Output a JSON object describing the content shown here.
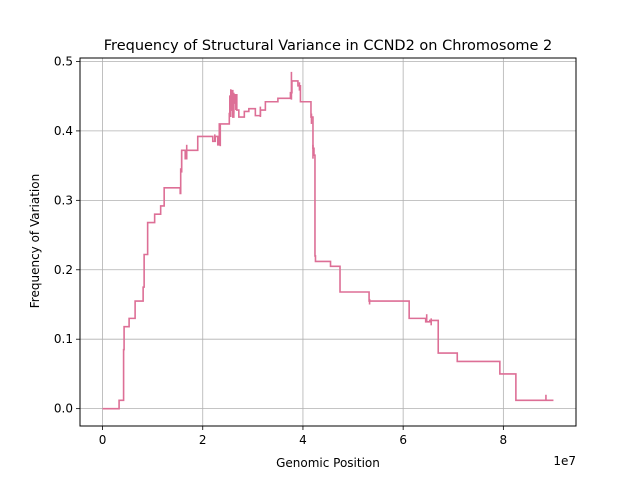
{
  "chart_data": {
    "type": "line",
    "title": "Frequency of Structural Variance in CCND2 on Chromosome 2",
    "xlabel": "Genomic Position",
    "ylabel": "Frequency of Variation",
    "x_offset_text": "1e7",
    "xlim": [
      -4500000.0,
      94500000.0
    ],
    "ylim": [
      -0.025,
      0.505
    ],
    "x_ticks": [
      0,
      20000000.0,
      40000000.0,
      60000000.0,
      80000000.0
    ],
    "x_tick_labels": [
      "0",
      "2",
      "4",
      "6",
      "8"
    ],
    "y_ticks": [
      0.0,
      0.1,
      0.2,
      0.3,
      0.4,
      0.5
    ],
    "y_tick_labels": [
      "0.0",
      "0.1",
      "0.2",
      "0.3",
      "0.4",
      "0.5"
    ],
    "grid": true,
    "line_color": "#dd6f96",
    "series": [
      {
        "step": "post",
        "points": [
          [
            0,
            0.0
          ],
          [
            3200000.0,
            0.0
          ],
          [
            3300000.0,
            0.012
          ],
          [
            4100000.0,
            0.012
          ],
          [
            4200000.0,
            0.085
          ],
          [
            4300000.0,
            0.118
          ],
          [
            5200000.0,
            0.118
          ],
          [
            5300000.0,
            0.13
          ],
          [
            6300000.0,
            0.13
          ],
          [
            6500000.0,
            0.155
          ],
          [
            8000000.0,
            0.155
          ],
          [
            8100000.0,
            0.175
          ],
          [
            8300000.0,
            0.222
          ],
          [
            8900000.0,
            0.222
          ],
          [
            9000000.0,
            0.268
          ],
          [
            10300000.0,
            0.268
          ],
          [
            10400000.0,
            0.28
          ],
          [
            11500000.0,
            0.28
          ],
          [
            11600000.0,
            0.292
          ],
          [
            12200000.0,
            0.292
          ],
          [
            12300000.0,
            0.318
          ],
          [
            15500000.0,
            0.318
          ],
          [
            15500000.0,
            0.31
          ],
          [
            15600000.0,
            0.31
          ],
          [
            15600000.0,
            0.345
          ],
          [
            15800000.0,
            0.345
          ],
          [
            15800000.0,
            0.372
          ],
          [
            16500000.0,
            0.372
          ],
          [
            16500000.0,
            0.36
          ],
          [
            16800000.0,
            0.36
          ],
          [
            16800000.0,
            0.372
          ],
          [
            19000000.0,
            0.372
          ],
          [
            19000000.0,
            0.392
          ],
          [
            22000000.0,
            0.392
          ],
          [
            22000000.0,
            0.385
          ],
          [
            22500000.0,
            0.385
          ],
          [
            22500000.0,
            0.392
          ],
          [
            23000000.0,
            0.392
          ],
          [
            23000000.0,
            0.38
          ],
          [
            23300000.0,
            0.38
          ],
          [
            23300000.0,
            0.41
          ],
          [
            25200000.0,
            0.41
          ],
          [
            25300000.0,
            0.425
          ],
          [
            25400000.0,
            0.45
          ],
          [
            25600000.0,
            0.43
          ],
          [
            25800000.0,
            0.458
          ],
          [
            26000000.0,
            0.42
          ],
          [
            26200000.0,
            0.44
          ],
          [
            26500000.0,
            0.452
          ],
          [
            26800000.0,
            0.43
          ],
          [
            27200000.0,
            0.42
          ],
          [
            28300000.0,
            0.42
          ],
          [
            28300000.0,
            0.428
          ],
          [
            29200000.0,
            0.428
          ],
          [
            29200000.0,
            0.432
          ],
          [
            30500000.0,
            0.432
          ],
          [
            30500000.0,
            0.422
          ],
          [
            31500000.0,
            0.422
          ],
          [
            31500000.0,
            0.43
          ],
          [
            32500000.0,
            0.43
          ],
          [
            32500000.0,
            0.442
          ],
          [
            35000000.0,
            0.442
          ],
          [
            35000000.0,
            0.447
          ],
          [
            37500000.0,
            0.447
          ],
          [
            37500000.0,
            0.455
          ],
          [
            37800000.0,
            0.455
          ],
          [
            37800000.0,
            0.472
          ],
          [
            39000000.0,
            0.472
          ],
          [
            39000000.0,
            0.465
          ],
          [
            39500000.0,
            0.465
          ],
          [
            39500000.0,
            0.442
          ],
          [
            41500000.0,
            0.442
          ],
          [
            41600000.0,
            0.42
          ],
          [
            41900000.0,
            0.42
          ],
          [
            42000000.0,
            0.375
          ],
          [
            42200000.0,
            0.365
          ],
          [
            42400000.0,
            0.22
          ],
          [
            42500000.0,
            0.212
          ],
          [
            45500000.0,
            0.212
          ],
          [
            45500000.0,
            0.205
          ],
          [
            47300000.0,
            0.205
          ],
          [
            47400000.0,
            0.168
          ],
          [
            53200000.0,
            0.168
          ],
          [
            53200000.0,
            0.155
          ],
          [
            61200000.0,
            0.155
          ],
          [
            61200000.0,
            0.13
          ],
          [
            64500000.0,
            0.13
          ],
          [
            64500000.0,
            0.125
          ],
          [
            65300000.0,
            0.125
          ],
          [
            65300000.0,
            0.127
          ],
          [
            67000000.0,
            0.127
          ],
          [
            67000000.0,
            0.08
          ],
          [
            70800000.0,
            0.08
          ],
          [
            70800000.0,
            0.068
          ],
          [
            79000000.0,
            0.068
          ],
          [
            79300000.0,
            0.05
          ],
          [
            82500000.0,
            0.05
          ],
          [
            82500000.0,
            0.012
          ],
          [
            90000000.0,
            0.012
          ]
        ],
        "spikes": [
          [
            15800000.0,
            0.34,
            0.372
          ],
          [
            16800000.0,
            0.36,
            0.38
          ],
          [
            22400000.0,
            0.385,
            0.395
          ],
          [
            23500000.0,
            0.378,
            0.41
          ],
          [
            25600000.0,
            0.42,
            0.46
          ],
          [
            26200000.0,
            0.425,
            0.455
          ],
          [
            26600000.0,
            0.43,
            0.452
          ],
          [
            31500000.0,
            0.42,
            0.435
          ],
          [
            37700000.0,
            0.445,
            0.485
          ],
          [
            39300000.0,
            0.458,
            0.47
          ],
          [
            41700000.0,
            0.41,
            0.425
          ],
          [
            42000000.0,
            0.36,
            0.38
          ],
          [
            53300000.0,
            0.15,
            0.158
          ],
          [
            64700000.0,
            0.125,
            0.136
          ],
          [
            65600000.0,
            0.12,
            0.13
          ],
          [
            88500000.0,
            0.012,
            0.02
          ]
        ]
      }
    ]
  }
}
